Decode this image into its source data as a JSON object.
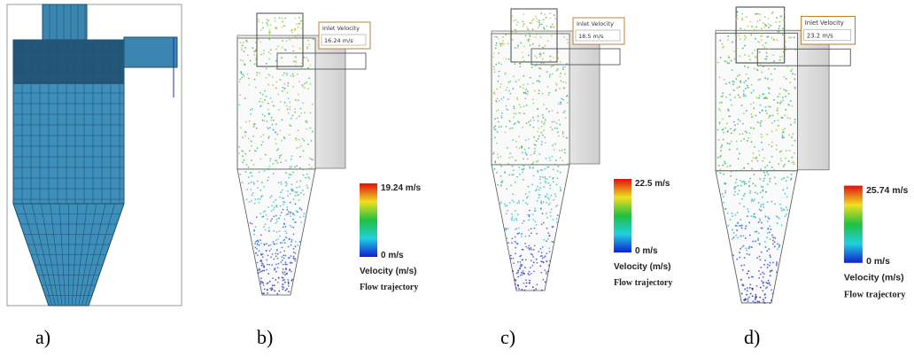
{
  "panels": [
    {
      "label": "a)"
    },
    {
      "label": "b)",
      "inlet_label": "Inlet Velocity",
      "inlet_value": "16.24 m/s",
      "scale_max": "19.24 m/s",
      "scale_min": "0 m/s",
      "legend_title": "Velocity (m/s)",
      "legend_subtitle": "Flow trajectory"
    },
    {
      "label": "c)",
      "inlet_label": "Inlet Velocity",
      "inlet_value": "18.5 m/s",
      "scale_max": "22.5 m/s",
      "scale_min": "0 m/s",
      "legend_title": "Velocity (m/s)",
      "legend_subtitle": "Flow trajectory"
    },
    {
      "label": "d)",
      "inlet_label": "Inlet Velocity",
      "inlet_value": "23.2 m/s",
      "scale_max": "25.74 m/s",
      "scale_min": "0 m/s",
      "legend_title": "Velocity (m/s)",
      "legend_subtitle": "Flow trajectory"
    }
  ]
}
